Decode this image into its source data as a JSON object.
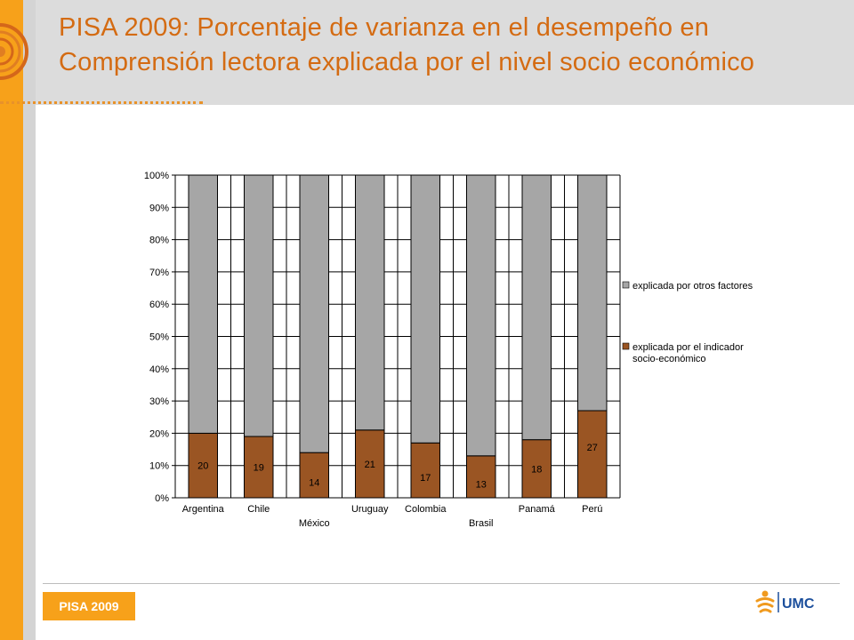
{
  "header": {
    "title": "PISA 2009: Porcentaje de varianza en el desempeño en Comprensión lectora explicada por el nivel socio económico"
  },
  "footer": {
    "badge": "PISA 2009",
    "logo_text": "UMC"
  },
  "colors": {
    "accent": "#f7a11a",
    "title": "#d46b12",
    "series_socio": "#9a5523",
    "series_otros": "#a6a6a6"
  },
  "chart_data": {
    "type": "bar",
    "stacked": true,
    "percent": true,
    "categories": [
      "Argentina",
      "Chile",
      "México",
      "Uruguay",
      "Colombia",
      "Brasil",
      "Panamá",
      "Perú"
    ],
    "series": [
      {
        "name": "explicada por el indicador socio-económico",
        "values": [
          20,
          19,
          14,
          21,
          17,
          13,
          18,
          27
        ]
      },
      {
        "name": "explicada por otros factores",
        "values": [
          80,
          81,
          86,
          79,
          83,
          87,
          82,
          73
        ]
      }
    ],
    "data_labels": [
      "20",
      "19",
      "14",
      "21",
      "17",
      "13",
      "18",
      "27"
    ],
    "yticks": [
      "0%",
      "10%",
      "20%",
      "30%",
      "40%",
      "50%",
      "60%",
      "70%",
      "80%",
      "90%",
      "100%"
    ],
    "ylim": [
      0,
      100
    ],
    "grid": true,
    "legend": [
      "explicada por otros factores",
      "explicada por el indicador socio-económico"
    ],
    "legend_lines": [
      [
        "explicada por otros factores"
      ],
      [
        "explicada por el indicador",
        "socio-económico"
      ]
    ],
    "legend_position": "right",
    "title": "",
    "xlabel": "",
    "ylabel": ""
  }
}
